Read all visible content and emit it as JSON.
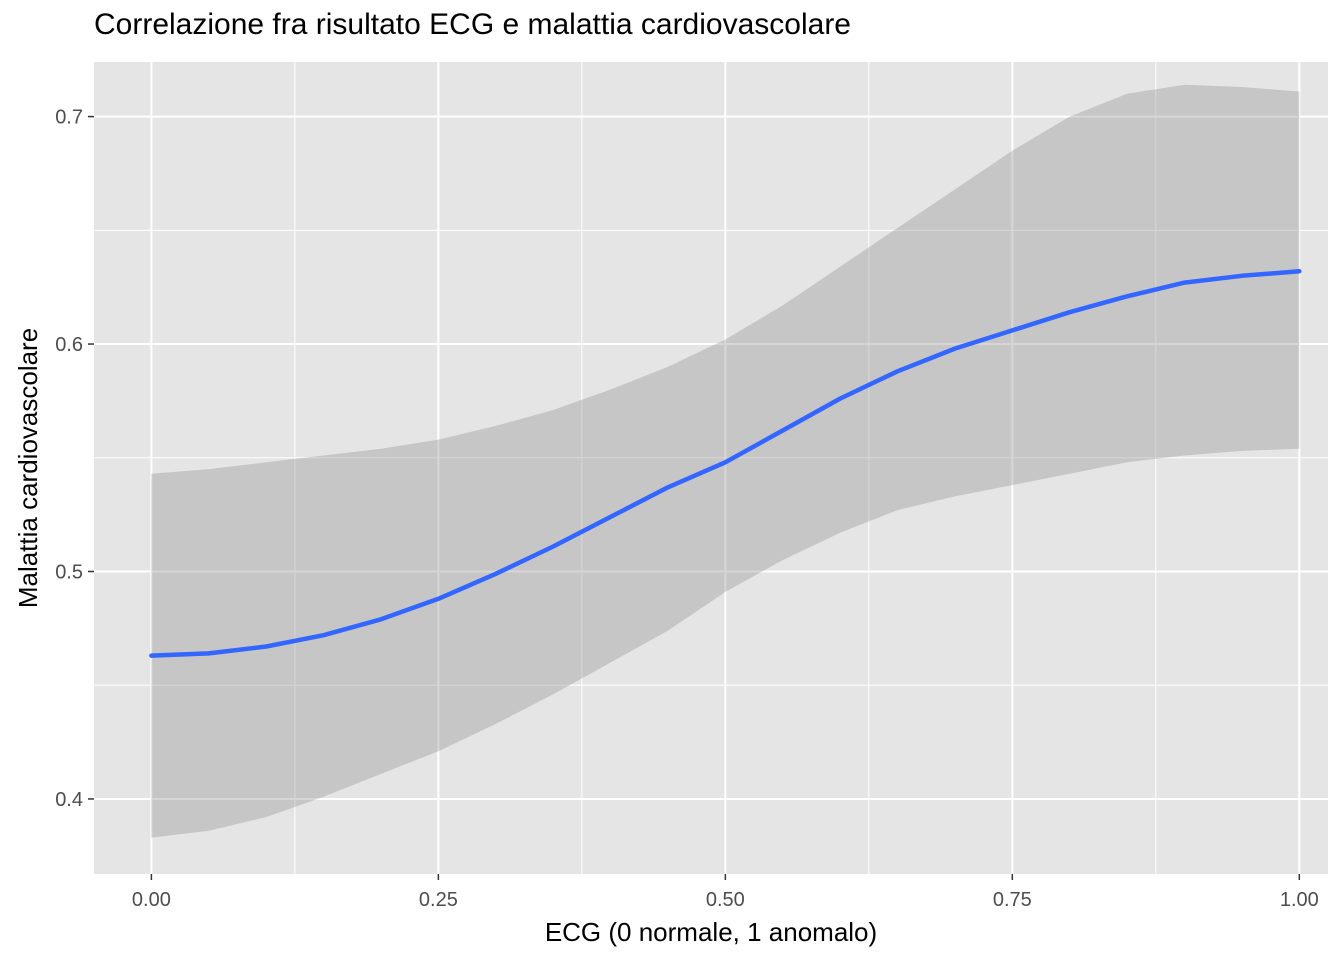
{
  "chart_data": {
    "type": "line",
    "title": "Correlazione fra risultato ECG e malattia cardiovascolare",
    "xlabel": "ECG (0 normale, 1 anomalo)",
    "ylabel": "Malattia cardiovascolare",
    "xlim": [
      -0.05,
      1.025
    ],
    "ylim": [
      0.367,
      0.724
    ],
    "x_ticks": [
      0.0,
      0.25,
      0.5,
      0.75,
      1.0
    ],
    "x_tick_labels": [
      "0.00",
      "0.25",
      "0.50",
      "0.75",
      "1.00"
    ],
    "y_ticks": [
      0.4,
      0.5,
      0.6,
      0.7
    ],
    "y_tick_labels": [
      "0.4",
      "0.5",
      "0.6",
      "0.7"
    ],
    "grid": true,
    "colors": {
      "panel_background": "#e5e5e5",
      "grid": "#ffffff",
      "line": "#3366ff",
      "ribbon": "#bebebe"
    },
    "series": [
      {
        "x": [
          0.0,
          0.05,
          0.1,
          0.15,
          0.2,
          0.25,
          0.3,
          0.35,
          0.4,
          0.45,
          0.5,
          0.55,
          0.6,
          0.65,
          0.7,
          0.75,
          0.8,
          0.85,
          0.9,
          0.95,
          1.0
        ],
        "y": [
          0.463,
          0.464,
          0.467,
          0.472,
          0.479,
          0.488,
          0.499,
          0.511,
          0.524,
          0.537,
          0.548,
          0.562,
          0.576,
          0.588,
          0.598,
          0.606,
          0.614,
          0.621,
          0.627,
          0.63,
          0.632
        ],
        "ymin": [
          0.383,
          0.386,
          0.392,
          0.401,
          0.411,
          0.421,
          0.433,
          0.446,
          0.46,
          0.474,
          0.491,
          0.505,
          0.517,
          0.527,
          0.533,
          0.538,
          0.543,
          0.548,
          0.551,
          0.553,
          0.554
        ],
        "ymax": [
          0.543,
          0.545,
          0.548,
          0.551,
          0.554,
          0.558,
          0.564,
          0.571,
          0.58,
          0.59,
          0.602,
          0.617,
          0.634,
          0.651,
          0.668,
          0.685,
          0.7,
          0.71,
          0.714,
          0.713,
          0.711
        ]
      }
    ]
  }
}
